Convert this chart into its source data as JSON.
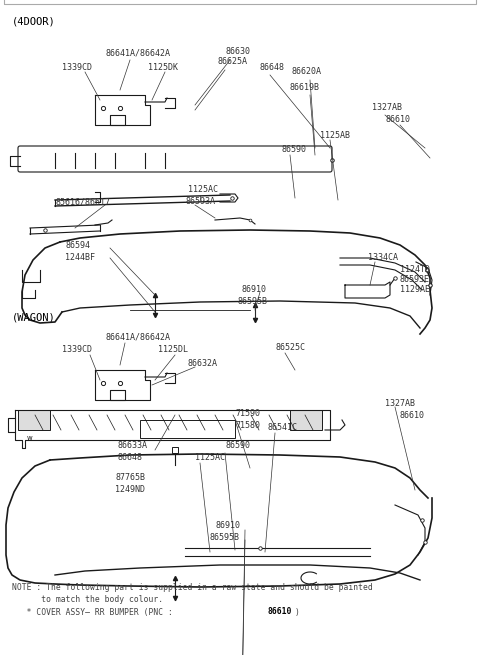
{
  "bg_color": "#ffffff",
  "line_color": "#1a1a1a",
  "text_color": "#444444",
  "fig_width": 4.8,
  "fig_height": 6.55,
  "dpi": 100,
  "section1_label": "(4DOOR)",
  "section2_label": "(WAGON)",
  "note_line1": "NOTE : The following part is supplied in a raw state and should be painted",
  "note_line2": "      to match the body colour.",
  "note_line3_pre": "   * COVER ASSY– RR BUMPER (PNC : ",
  "note_line3_bold": "86610",
  "note_line3_post": ")"
}
